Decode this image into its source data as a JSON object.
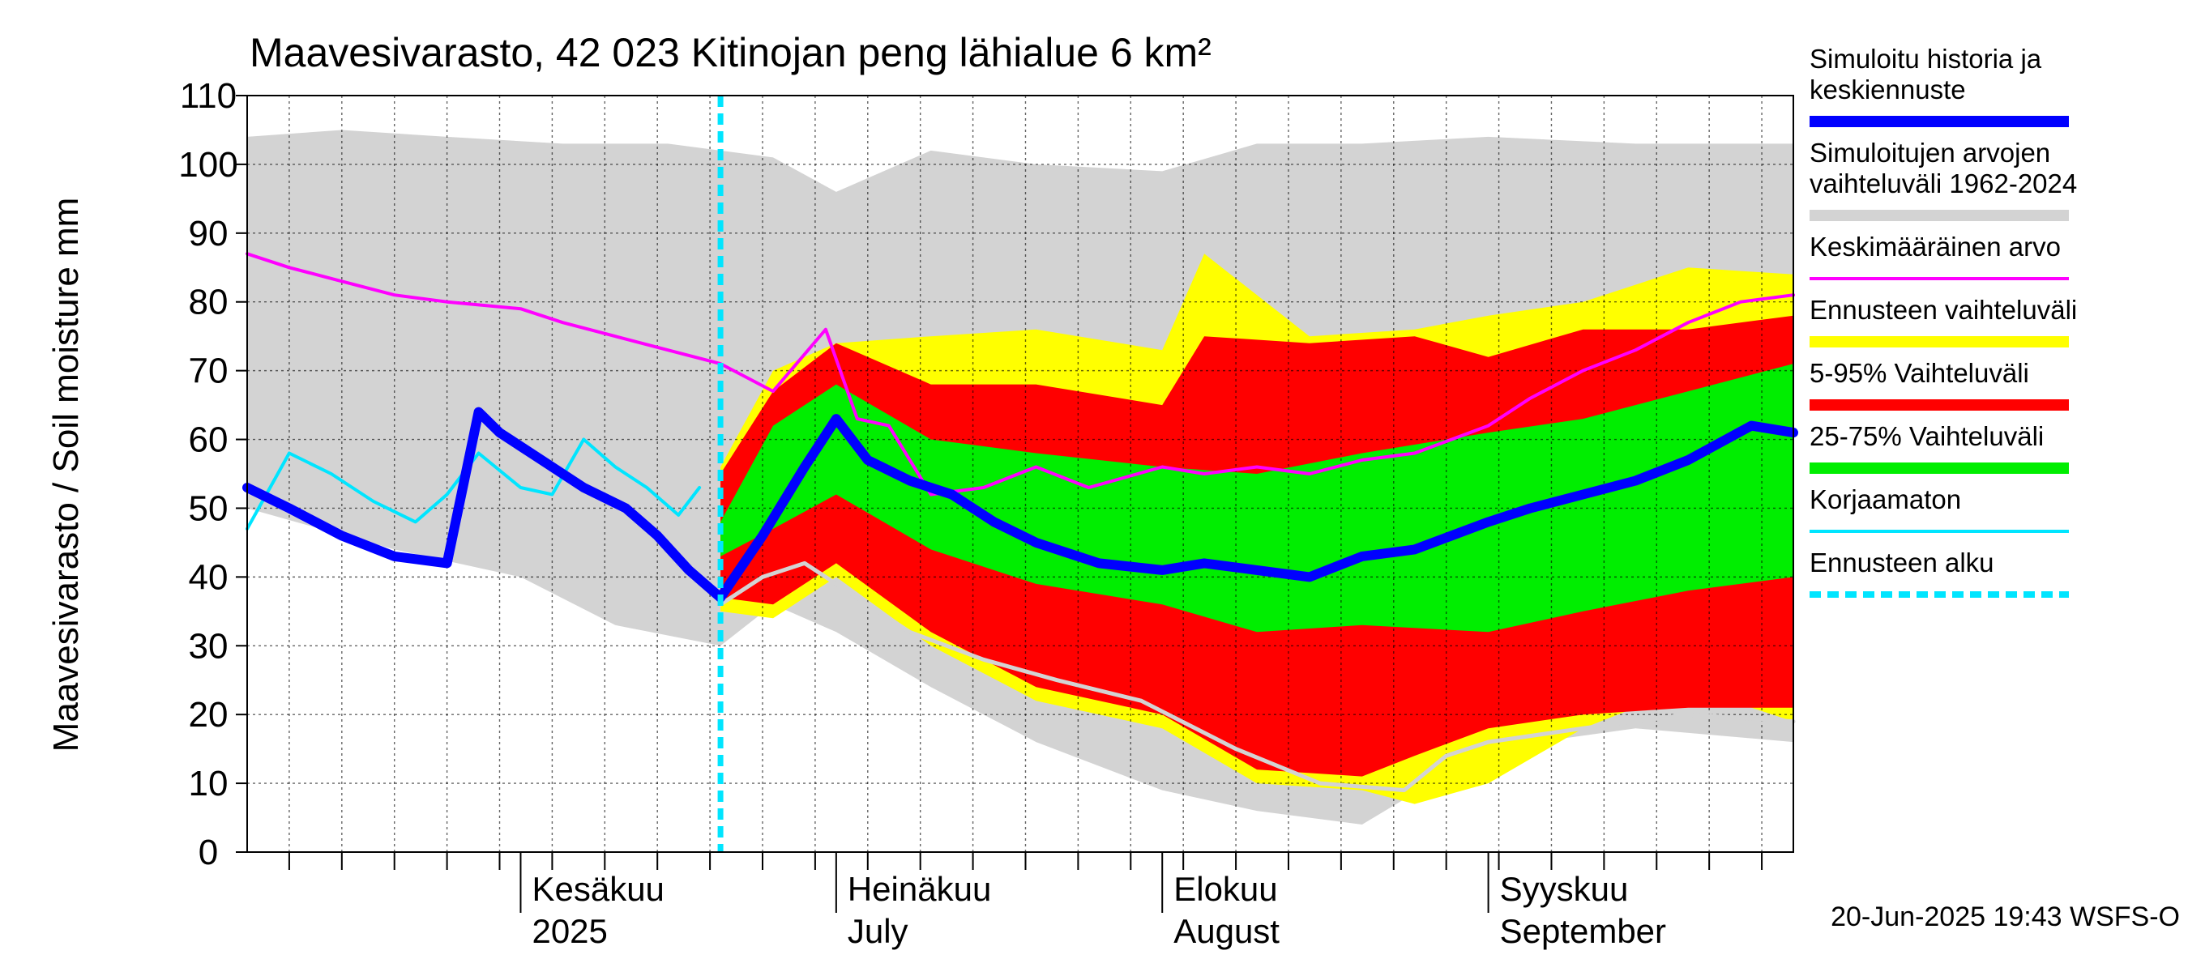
{
  "chart_data": {
    "type": "area",
    "title": "Maavesivarasto, 42 023 Kitinojan peng lähialue 6 km²",
    "ylabel": "Maavesivarasto / Soil moisture   mm",
    "xlabel": "",
    "ylim": [
      0,
      110
    ],
    "yticks": [
      0,
      10,
      20,
      30,
      40,
      50,
      60,
      70,
      80,
      90,
      100,
      110
    ],
    "xlim": [
      "2025-05-06",
      "2025-09-30"
    ],
    "grid": true,
    "legend_position": "right",
    "month_labels": [
      {
        "date": "2025-06-01",
        "line1": "Kesäkuu",
        "line2": "2025"
      },
      {
        "date": "2025-07-01",
        "line1": "Heinäkuu",
        "line2": "July"
      },
      {
        "date": "2025-08-01",
        "line1": "Elokuu",
        "line2": "August"
      },
      {
        "date": "2025-09-01",
        "line1": "Syyskuu",
        "line2": "September"
      }
    ],
    "forecast_start": "2025-06-20",
    "footer": "20-Jun-2025 19:43 WSFS-O",
    "colors": {
      "history": "#0000ff",
      "range_hist": "#d3d3d3",
      "mean": "#ff00ff",
      "forecast_range": "#ffff00",
      "p5_95": "#ff0000",
      "p25_75": "#00ee00",
      "uncorrected": "#00e5ff",
      "forecast_start": "#00e5ff",
      "sim_gray_line": "#d3d3d3"
    },
    "legend": [
      {
        "key": "history",
        "label": "Simuloitu historia ja keskiennuste"
      },
      {
        "key": "range_hist",
        "label": "Simuloitujen arvojen vaihteluväli 1962-2024"
      },
      {
        "key": "mean",
        "label": "Keskimääräinen arvo"
      },
      {
        "key": "forecast_range",
        "label": "Ennusteen vaihteluväli"
      },
      {
        "key": "p5_95",
        "label": "5-95% Vaihteluväli"
      },
      {
        "key": "p25_75",
        "label": "25-75% Vaihteluväli"
      },
      {
        "key": "uncorrected",
        "label": "Korjaamaton"
      },
      {
        "key": "forecast_start",
        "label": "Ennusteen alku"
      }
    ],
    "series": [
      {
        "key": "range_hist_upper",
        "name": "Simuloitujen arvojen vaihteluväli 1962-2024",
        "x": [
          "2025-05-06",
          "2025-05-15",
          "2025-05-25",
          "2025-06-05",
          "2025-06-15",
          "2025-06-25",
          "2025-07-01",
          "2025-07-10",
          "2025-07-20",
          "2025-08-01",
          "2025-08-10",
          "2025-08-20",
          "2025-09-01",
          "2025-09-15",
          "2025-09-30"
        ],
        "y": [
          104,
          105,
          104,
          103,
          103,
          101,
          96,
          102,
          100,
          99,
          103,
          103,
          104,
          103,
          103
        ]
      },
      {
        "key": "range_hist_lower",
        "name": "Simuloitujen arvojen vaihteluväli 1962-2024",
        "x": [
          "2025-05-06",
          "2025-05-20",
          "2025-06-01",
          "2025-06-10",
          "2025-06-20",
          "2025-06-25",
          "2025-07-01",
          "2025-07-10",
          "2025-07-20",
          "2025-08-01",
          "2025-08-10",
          "2025-08-20",
          "2025-09-01",
          "2025-09-15",
          "2025-09-30"
        ],
        "y": [
          50,
          44,
          40,
          33,
          30,
          36,
          32,
          24,
          16,
          9,
          6,
          4,
          15,
          18,
          16
        ]
      },
      {
        "key": "forecast_upper",
        "name": "Ennusteen vaihteluväli",
        "x": [
          "2025-06-20",
          "2025-06-25",
          "2025-07-01",
          "2025-07-10",
          "2025-07-20",
          "2025-08-01",
          "2025-08-05",
          "2025-08-15",
          "2025-08-25",
          "2025-09-01",
          "2025-09-10",
          "2025-09-20",
          "2025-09-30"
        ],
        "y": [
          56,
          70,
          74,
          75,
          76,
          73,
          87,
          75,
          76,
          78,
          80,
          85,
          84
        ]
      },
      {
        "key": "forecast_lower",
        "name": "Ennusteen vaihteluväli",
        "x": [
          "2025-06-20",
          "2025-06-25",
          "2025-07-01",
          "2025-07-10",
          "2025-07-20",
          "2025-08-01",
          "2025-08-10",
          "2025-08-20",
          "2025-08-25",
          "2025-09-01",
          "2025-09-10",
          "2025-09-20",
          "2025-09-30"
        ],
        "y": [
          35,
          34,
          40,
          30,
          22,
          18,
          10,
          9,
          7,
          10,
          18,
          24,
          19
        ]
      },
      {
        "key": "p95",
        "name": "5-95% Vaihteluväli",
        "x": [
          "2025-06-20",
          "2025-06-25",
          "2025-07-01",
          "2025-07-10",
          "2025-07-20",
          "2025-08-01",
          "2025-08-05",
          "2025-08-15",
          "2025-08-25",
          "2025-09-01",
          "2025-09-10",
          "2025-09-20",
          "2025-09-30"
        ],
        "y": [
          55,
          67,
          74,
          68,
          68,
          65,
          75,
          74,
          75,
          72,
          76,
          76,
          78
        ]
      },
      {
        "key": "p5",
        "name": "5-95% Vaihteluväli",
        "x": [
          "2025-06-20",
          "2025-06-25",
          "2025-07-01",
          "2025-07-10",
          "2025-07-20",
          "2025-08-01",
          "2025-08-10",
          "2025-08-20",
          "2025-08-25",
          "2025-09-01",
          "2025-09-10",
          "2025-09-20",
          "2025-09-30"
        ],
        "y": [
          37,
          36,
          42,
          32,
          24,
          20,
          12,
          11,
          14,
          18,
          20,
          21,
          21
        ]
      },
      {
        "key": "p75",
        "name": "25-75% Vaihteluväli",
        "x": [
          "2025-06-20",
          "2025-06-25",
          "2025-07-01",
          "2025-07-10",
          "2025-07-20",
          "2025-08-01",
          "2025-08-10",
          "2025-08-20",
          "2025-09-01",
          "2025-09-10",
          "2025-09-20",
          "2025-09-30"
        ],
        "y": [
          48,
          62,
          68,
          60,
          58,
          56,
          55,
          58,
          61,
          63,
          67,
          71
        ]
      },
      {
        "key": "p25",
        "name": "25-75% Vaihteluväli",
        "x": [
          "2025-06-20",
          "2025-06-25",
          "2025-07-01",
          "2025-07-10",
          "2025-07-20",
          "2025-08-01",
          "2025-08-10",
          "2025-08-20",
          "2025-09-01",
          "2025-09-10",
          "2025-09-20",
          "2025-09-30"
        ],
        "y": [
          43,
          47,
          52,
          44,
          39,
          36,
          32,
          33,
          32,
          35,
          38,
          40
        ]
      },
      {
        "key": "history",
        "name": "Simuloitu historia ja keskiennuste",
        "x": [
          "2025-05-06",
          "2025-05-10",
          "2025-05-15",
          "2025-05-20",
          "2025-05-25",
          "2025-05-28",
          "2025-05-30",
          "2025-06-03",
          "2025-06-07",
          "2025-06-11",
          "2025-06-14",
          "2025-06-17",
          "2025-06-20",
          "2025-06-24",
          "2025-06-28",
          "2025-07-01",
          "2025-07-04",
          "2025-07-08",
          "2025-07-12",
          "2025-07-16",
          "2025-07-20",
          "2025-07-26",
          "2025-08-01",
          "2025-08-05",
          "2025-08-10",
          "2025-08-15",
          "2025-08-20",
          "2025-08-25",
          "2025-09-01",
          "2025-09-05",
          "2025-09-10",
          "2025-09-15",
          "2025-09-20",
          "2025-09-26",
          "2025-09-30"
        ],
        "y": [
          53,
          50,
          46,
          43,
          42,
          64,
          61,
          57,
          53,
          50,
          46,
          41,
          37,
          46,
          56,
          63,
          57,
          54,
          52,
          48,
          45,
          42,
          41,
          42,
          41,
          40,
          43,
          44,
          48,
          50,
          52,
          54,
          57,
          62,
          61
        ]
      },
      {
        "key": "mean",
        "name": "Keskimääräinen arvo",
        "x": [
          "2025-05-06",
          "2025-05-10",
          "2025-05-15",
          "2025-05-20",
          "2025-05-25",
          "2025-06-01",
          "2025-06-05",
          "2025-06-10",
          "2025-06-15",
          "2025-06-20",
          "2025-06-25",
          "2025-06-30",
          "2025-07-03",
          "2025-07-06",
          "2025-07-10",
          "2025-07-15",
          "2025-07-20",
          "2025-07-25",
          "2025-08-01",
          "2025-08-05",
          "2025-08-10",
          "2025-08-15",
          "2025-08-20",
          "2025-08-25",
          "2025-09-01",
          "2025-09-05",
          "2025-09-10",
          "2025-09-15",
          "2025-09-20",
          "2025-09-25",
          "2025-09-30"
        ],
        "y": [
          87,
          85,
          83,
          81,
          80,
          79,
          77,
          75,
          73,
          71,
          67,
          76,
          63,
          62,
          52,
          53,
          56,
          53,
          56,
          55,
          56,
          55,
          57,
          58,
          62,
          66,
          70,
          73,
          77,
          80,
          81
        ]
      },
      {
        "key": "uncorrected",
        "name": "Korjaamaton",
        "x": [
          "2025-05-06",
          "2025-05-10",
          "2025-05-14",
          "2025-05-18",
          "2025-05-22",
          "2025-05-25",
          "2025-05-28",
          "2025-06-01",
          "2025-06-04",
          "2025-06-07",
          "2025-06-10",
          "2025-06-13",
          "2025-06-16",
          "2025-06-18"
        ],
        "y": [
          47,
          58,
          55,
          51,
          48,
          52,
          58,
          53,
          52,
          60,
          56,
          53,
          49,
          53
        ]
      },
      {
        "key": "sim_gray",
        "name": "",
        "x": [
          "2025-06-20",
          "2025-06-24",
          "2025-06-28",
          "2025-07-02",
          "2025-07-08",
          "2025-07-15",
          "2025-07-22",
          "2025-07-30",
          "2025-08-08",
          "2025-08-16",
          "2025-08-24",
          "2025-08-28",
          "2025-09-01",
          "2025-09-10",
          "2025-09-20",
          "2025-09-30"
        ],
        "y": [
          36,
          40,
          42,
          38,
          32,
          28,
          25,
          22,
          15,
          10,
          9,
          14,
          16,
          18,
          20,
          19
        ]
      }
    ]
  }
}
